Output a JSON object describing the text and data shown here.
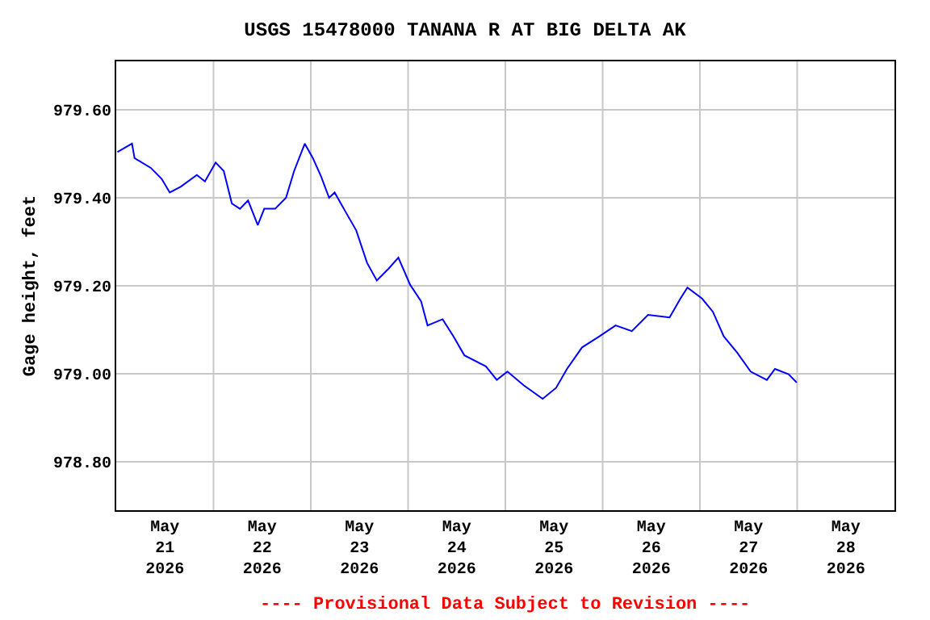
{
  "chart_data": {
    "type": "line",
    "title": "USGS 15478000 TANANA R AT BIG DELTA AK",
    "ylabel": "Gage height, feet",
    "annotations": [
      "---- Provisional Data Subject to Revision ----"
    ],
    "x": [
      "2026-05-21T00:17",
      "2026-05-21T03:53",
      "2026-05-21T04:31",
      "2026-05-21T08:31",
      "2026-05-21T11:12",
      "2026-05-21T13:12",
      "2026-05-21T15:53",
      "2026-05-21T19:53",
      "2026-05-21T21:53",
      "2026-05-22T00:31",
      "2026-05-22T02:31",
      "2026-05-22T04:31",
      "2026-05-22T06:31",
      "2026-05-22T08:31",
      "2026-05-22T10:55",
      "2026-05-22T12:31",
      "2026-05-22T15:12",
      "2026-05-22T17:53",
      "2026-05-22T19:53",
      "2026-05-22T22:31",
      "2026-05-23T00:31",
      "2026-05-23T02:31",
      "2026-05-23T04:31",
      "2026-05-23T05:53",
      "2026-05-23T08:31",
      "2026-05-23T11:12",
      "2026-05-23T13:53",
      "2026-05-23T16:17",
      "2026-05-23T19:12",
      "2026-05-23T21:36",
      "2026-05-24T00:31",
      "2026-05-24T03:12",
      "2026-05-24T04:48",
      "2026-05-24T08:31",
      "2026-05-24T11:12",
      "2026-05-24T13:53",
      "2026-05-24T19:12",
      "2026-05-24T21:53",
      "2026-05-25T00:31",
      "2026-05-25T04:31",
      "2026-05-25T09:12",
      "2026-05-25T12:31",
      "2026-05-25T15:12",
      "2026-05-25T18:55",
      "2026-05-25T23:12",
      "2026-05-26T03:12",
      "2026-05-26T07:12",
      "2026-05-26T11:12",
      "2026-05-26T16:31",
      "2026-05-26T19:12",
      "2026-05-26T20:55",
      "2026-05-27T00:31",
      "2026-05-27T03:12",
      "2026-05-27T05:53",
      "2026-05-27T09:12",
      "2026-05-27T12:31",
      "2026-05-27T16:31",
      "2026-05-27T18:31",
      "2026-05-27T21:53",
      "2026-05-27T23:53"
    ],
    "series": [
      {
        "color": "#0000ff",
        "values": [
          979.504,
          979.523,
          979.49,
          979.468,
          979.443,
          979.412,
          979.425,
          979.452,
          979.437,
          979.48,
          979.461,
          979.387,
          979.375,
          979.394,
          979.338,
          979.375,
          979.375,
          979.4,
          979.461,
          979.523,
          979.49,
          979.449,
          979.4,
          979.412,
          979.369,
          979.326,
          979.252,
          979.212,
          979.239,
          979.264,
          979.202,
          979.165,
          979.11,
          979.124,
          979.085,
          979.042,
          979.017,
          978.986,
          979.005,
          978.974,
          978.943,
          978.968,
          979.011,
          979.06,
          979.085,
          979.11,
          979.097,
          979.134,
          979.128,
          979.171,
          979.196,
          979.171,
          979.141,
          979.085,
          979.048,
          979.005,
          978.986,
          979.011,
          978.999,
          978.98
        ]
      }
    ],
    "xlim": [
      "2026-05-21T00:00",
      "2026-05-29T00:00"
    ],
    "xticks": [
      {
        "value": "2026-05-21T12:00",
        "label": "May\n21\n2026"
      },
      {
        "value": "2026-05-22T12:00",
        "label": "May\n22\n2026"
      },
      {
        "value": "2026-05-23T12:00",
        "label": "May\n23\n2026"
      },
      {
        "value": "2026-05-24T12:00",
        "label": "May\n24\n2026"
      },
      {
        "value": "2026-05-25T12:00",
        "label": "May\n25\n2026"
      },
      {
        "value": "2026-05-26T12:00",
        "label": "May\n26\n2026"
      },
      {
        "value": "2026-05-27T12:00",
        "label": "May\n27\n2026"
      },
      {
        "value": "2026-05-28T12:00",
        "label": "May\n28\n2026"
      },
      {
        "value": "2026-05-22T00:00",
        "label": null
      },
      {
        "value": "2026-05-23T00:00",
        "label": null
      },
      {
        "value": "2026-05-24T00:00",
        "label": null
      },
      {
        "value": "2026-05-25T00:00",
        "label": null
      },
      {
        "value": "2026-05-26T00:00",
        "label": null
      },
      {
        "value": "2026-05-27T00:00",
        "label": null
      },
      {
        "value": "2026-05-28T00:00",
        "label": null
      }
    ],
    "ylim": [
      978.69,
      979.71
    ],
    "yticks": [
      {
        "value": 978.8,
        "label": "978.80"
      },
      {
        "value": 979.0,
        "label": "979.00"
      },
      {
        "value": 979.2,
        "label": "979.20"
      },
      {
        "value": 979.4,
        "label": "979.40"
      },
      {
        "value": 979.6,
        "label": "979.60"
      }
    ],
    "grid": true,
    "marker": "none",
    "line_style": "solid"
  }
}
